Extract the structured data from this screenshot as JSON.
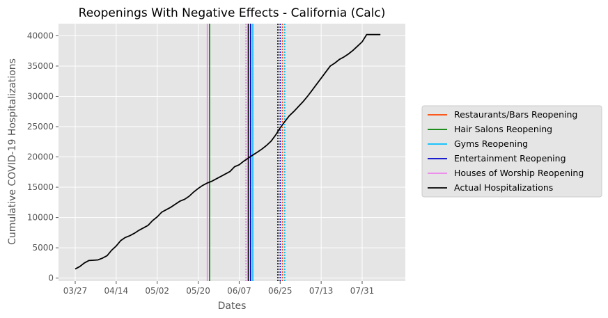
{
  "chart_data": {
    "type": "line",
    "title": "Reopenings With Negative Effects - California (Calc)",
    "xlabel": "Dates",
    "ylabel": "Cumulative COVID-19 Hospitalizations",
    "x_tick_labels": [
      "03/27",
      "04/14",
      "05/02",
      "05/20",
      "06/07",
      "06/25",
      "07/13",
      "07/31"
    ],
    "y_tick_labels": [
      "0",
      "5000",
      "10000",
      "15000",
      "20000",
      "25000",
      "30000",
      "35000",
      "40000"
    ],
    "y_ticks": [
      0,
      5000,
      10000,
      15000,
      20000,
      25000,
      30000,
      35000,
      40000
    ],
    "ylim": [
      -500,
      42000
    ],
    "grid": true,
    "legend_position": "right",
    "series": [
      {
        "name": "Actual Hospitalizations",
        "color": "#000000",
        "x": [
          "03/27",
          "03/29",
          "03/31",
          "04/02",
          "04/04",
          "04/06",
          "04/08",
          "04/10",
          "04/12",
          "04/14",
          "04/16",
          "04/18",
          "04/20",
          "04/22",
          "04/24",
          "04/26",
          "04/28",
          "04/30",
          "05/02",
          "05/04",
          "05/06",
          "05/08",
          "05/10",
          "05/12",
          "05/14",
          "05/16",
          "05/18",
          "05/20",
          "05/22",
          "05/24",
          "05/26",
          "05/28",
          "05/30",
          "06/01",
          "06/03",
          "06/05",
          "06/07",
          "06/09",
          "06/11",
          "06/13",
          "06/15",
          "06/17",
          "06/19",
          "06/21",
          "06/23",
          "06/25",
          "06/27",
          "06/29",
          "07/01",
          "07/03",
          "07/05",
          "07/07",
          "07/09",
          "07/11",
          "07/13",
          "07/15",
          "07/17",
          "07/19",
          "07/21",
          "07/23",
          "07/25",
          "07/27",
          "07/29",
          "07/31",
          "08/02",
          "08/04",
          "08/06",
          "08/08",
          "08/10",
          "08/12"
        ],
        "values": [
          1500,
          1900,
          2500,
          2900,
          2950,
          3000,
          3300,
          3700,
          4600,
          5300,
          6200,
          6700,
          7000,
          7400,
          7900,
          8300,
          8700,
          9500,
          10100,
          10900,
          11300,
          11700,
          12200,
          12700,
          13000,
          13500,
          14200,
          14800,
          15300,
          15700,
          16000,
          16400,
          16800,
          17200,
          17600,
          18400,
          18700,
          19300,
          19800,
          20300,
          20800,
          21300,
          21900,
          22600,
          23600,
          24800,
          25800,
          26800,
          27500,
          28300,
          29100,
          30000,
          31000,
          32000,
          33000,
          34000,
          35000,
          35500,
          36100,
          36500,
          37000,
          37600,
          38300,
          39000,
          40200,
          40200,
          40200,
          40200,
          40200,
          40200
        ]
      }
    ],
    "reopenings": [
      {
        "name": "Restaurants/Bars Reopening",
        "color": "#ff4500",
        "dates": [
          "06/12",
          "06/26"
        ],
        "styles": [
          "dotted",
          "dotted"
        ]
      },
      {
        "name": "Hair Salons Reopening",
        "color": "#008000",
        "dates": [
          "05/25",
          "06/10"
        ],
        "styles": [
          "solid",
          "dotted"
        ]
      },
      {
        "name": "Gyms Reopening",
        "color": "#00bfff",
        "dates": [
          "06/13",
          "06/27"
        ],
        "styles": [
          "solid",
          "dotted"
        ]
      },
      {
        "name": "Entertainment Reopening",
        "color": "#0000cd",
        "dates": [
          "06/12",
          "06/25"
        ],
        "styles": [
          "solid",
          "dotted"
        ]
      },
      {
        "name": "Houses of Worship Reopening",
        "color": "#ee82ee",
        "dates": [
          "05/24",
          "06/10"
        ],
        "styles": [
          "solid",
          "dotted"
        ]
      },
      {
        "name": "Actual Hospitalizations (marker)",
        "color": "#000000",
        "dates": [
          "06/11",
          "06/24"
        ],
        "styles": [
          "solid",
          "dotted"
        ]
      }
    ],
    "legend": [
      {
        "label": "Restaurants/Bars Reopening",
        "color": "#ff4500"
      },
      {
        "label": "Hair Salons Reopening",
        "color": "#008000"
      },
      {
        "label": "Gyms Reopening",
        "color": "#00bfff"
      },
      {
        "label": "Entertainment Reopening",
        "color": "#0000cd"
      },
      {
        "label": "Houses of Worship Reopening",
        "color": "#ee82ee"
      },
      {
        "label": "Actual Hospitalizations",
        "color": "#000000"
      }
    ]
  }
}
